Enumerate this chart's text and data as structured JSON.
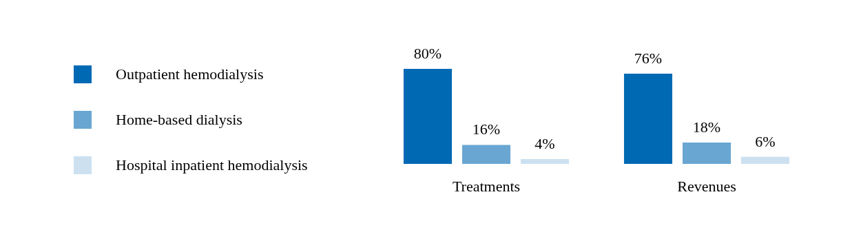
{
  "chart_data": {
    "type": "bar",
    "categories": [
      "Treatments",
      "Revenues"
    ],
    "legend": "left",
    "series": [
      {
        "name": "Outpatient hemodialysis",
        "color": "#0069b4",
        "values": [
          80,
          76
        ],
        "value_labels": [
          "80%",
          "76%"
        ]
      },
      {
        "name": "Home-based dialysis",
        "color": "#69a6d2",
        "values": [
          16,
          18
        ],
        "value_labels": [
          "16%",
          "18%"
        ]
      },
      {
        "name": "Hospital inpatient hemodialysis",
        "color": "#cce0f0",
        "values": [
          4,
          6
        ],
        "value_labels": [
          "4%",
          "6%"
        ]
      }
    ]
  }
}
